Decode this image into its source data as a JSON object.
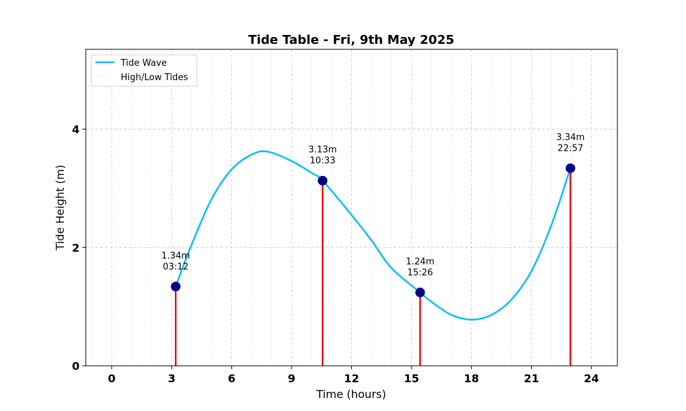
{
  "chart_data": {
    "type": "line",
    "title": "Tide Table - Fri, 9th May 2025",
    "xlabel": "Time (hours)",
    "ylabel": "Tide Height (m)",
    "xlim": [
      -1.3,
      25.3
    ],
    "ylim": [
      0,
      5.35
    ],
    "xticks": [
      0,
      3,
      6,
      9,
      12,
      15,
      18,
      21,
      24
    ],
    "yticks": [
      0,
      2,
      4
    ],
    "x_minor_grid_step": 1,
    "grid": true,
    "legend": {
      "position": "top-left",
      "entries": [
        "Tide Wave",
        "High/Low Tides"
      ]
    },
    "series": [
      {
        "name": "Tide Wave",
        "color": "#12bff0",
        "x": [
          3.2,
          4,
          5,
          6,
          7,
          7.8,
          9,
          10,
          10.55,
          12,
          13,
          14,
          15.43,
          16,
          17,
          18,
          19,
          20,
          21,
          22,
          22.95
        ],
        "y": [
          1.34,
          2.05,
          2.82,
          3.32,
          3.57,
          3.62,
          3.46,
          3.26,
          3.13,
          2.55,
          2.12,
          1.65,
          1.24,
          1.08,
          0.86,
          0.78,
          0.86,
          1.12,
          1.6,
          2.38,
          3.34
        ]
      },
      {
        "name": "High/Low Tides",
        "color": "#e8000b",
        "marker_color": "#00008b",
        "points": [
          {
            "x": 3.2,
            "y": 1.34,
            "height_label": "1.34m",
            "time_label": "03:12"
          },
          {
            "x": 10.55,
            "y": 3.13,
            "height_label": "3.13m",
            "time_label": "10:33"
          },
          {
            "x": 15.43,
            "y": 1.24,
            "height_label": "1.24m",
            "time_label": "15:26"
          },
          {
            "x": 22.95,
            "y": 3.34,
            "height_label": "3.34m",
            "time_label": "22:57"
          }
        ]
      }
    ]
  }
}
